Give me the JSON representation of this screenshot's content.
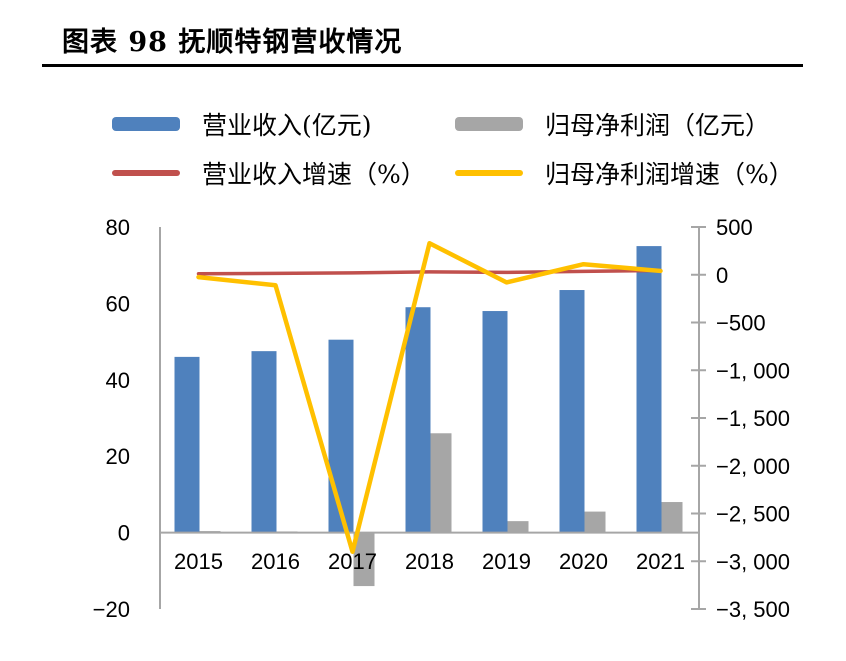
{
  "title": "图表 98 抚顺特钢营收情况",
  "colors": {
    "revenue_bar": "#4F81BD",
    "profit_bar": "#A6A6A6",
    "revenue_growth_line": "#C0504D",
    "profit_growth_line": "#FFC000",
    "axis_line": "#A6A6A6",
    "text": "#000000",
    "title_rule": "#000000"
  },
  "legend": {
    "items": [
      {
        "label": "营业收入(亿元)",
        "swatch": "bar",
        "color": "#4F81BD",
        "col": 0,
        "row": 0
      },
      {
        "label": "归母净利润（亿元）",
        "swatch": "bar",
        "color": "#A6A6A6",
        "col": 1,
        "row": 0
      },
      {
        "label": "营业收入增速（%）",
        "swatch": "line",
        "color": "#C0504D",
        "col": 0,
        "row": 1
      },
      {
        "label": "归母净利润增速（%）",
        "swatch": "line",
        "color": "#FFC000",
        "col": 1,
        "row": 1
      }
    ]
  },
  "chart_data": {
    "type": "combo",
    "title": "图表 98 抚顺特钢营收情况",
    "categories": [
      "2015",
      "2016",
      "2017",
      "2018",
      "2019",
      "2020",
      "2021"
    ],
    "series": [
      {
        "name": "营业收入(亿元)",
        "type": "bar",
        "axis": "left",
        "color": "#4F81BD",
        "values": [
          46,
          47.5,
          50.5,
          59,
          58,
          63.5,
          75
        ]
      },
      {
        "name": "归母净利润（亿元）",
        "type": "bar",
        "axis": "left",
        "color": "#A6A6A6",
        "values": [
          0.4,
          0.3,
          -14,
          26,
          3,
          5.5,
          8
        ]
      },
      {
        "name": "营业收入增速（%）",
        "type": "line",
        "axis": "right",
        "color": "#C0504D",
        "values": [
          10,
          15,
          20,
          30,
          25,
          35,
          45
        ]
      },
      {
        "name": "归母净利润增速（%）",
        "type": "line",
        "axis": "right",
        "color": "#FFC000",
        "values": [
          -25,
          -110,
          -2900,
          330,
          -80,
          110,
          40
        ]
      }
    ],
    "left_axis": {
      "min": -20,
      "max": 80,
      "tick_values": [
        80,
        60,
        40,
        20,
        0,
        -20
      ],
      "tick_labels": [
        "80",
        "60",
        "40",
        "20",
        "0",
        "−20"
      ]
    },
    "right_axis": {
      "min": -3500,
      "max": 500,
      "tick_values": [
        500,
        0,
        -500,
        -1000,
        -1500,
        -2000,
        -2500,
        -3000,
        -3500
      ],
      "tick_labels": [
        "500",
        "0",
        "−500",
        "−1, 000",
        "−1, 500",
        "−2, 000",
        "−2, 500",
        "−3, 000",
        "−3, 500"
      ]
    },
    "grid": false,
    "legend_position": "top"
  }
}
